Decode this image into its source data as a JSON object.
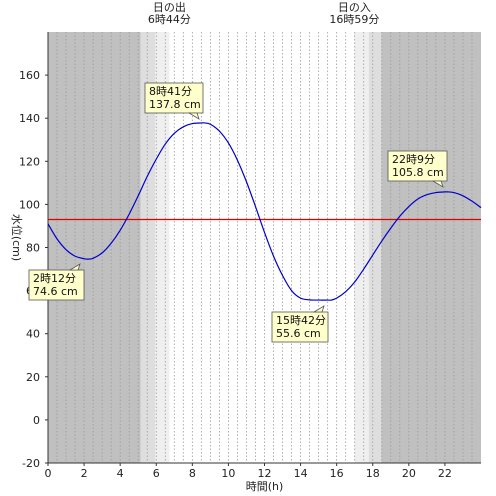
{
  "chart_data": {
    "type": "line",
    "xlabel": "時間(h)",
    "ylabel": "水位(cm)",
    "xlim": [
      0,
      24
    ],
    "ylim": [
      -20,
      180
    ],
    "x_ticks": [
      0,
      2,
      4,
      6,
      8,
      10,
      12,
      14,
      16,
      18,
      20,
      22
    ],
    "y_ticks": [
      -20,
      0,
      20,
      40,
      60,
      80,
      100,
      120,
      140,
      160
    ],
    "grid": "vertical dotted (every 0.5h)",
    "series": [
      {
        "color": "#0000cc",
        "x": [
          0,
          0.5,
          1,
          1.5,
          2,
          2.2,
          2.5,
          3,
          3.5,
          4,
          4.5,
          5,
          5.5,
          6,
          6.5,
          7,
          7.5,
          8,
          8.5,
          8.68,
          9,
          9.5,
          10,
          10.5,
          11,
          11.5,
          12,
          12.5,
          13,
          13.5,
          14,
          14.5,
          15,
          15.5,
          15.7,
          16,
          16.5,
          17,
          17.5,
          18,
          18.5,
          19,
          19.5,
          20,
          20.5,
          21,
          21.5,
          22,
          22.15,
          22.5,
          23,
          23.5,
          24
        ],
        "y": [
          91,
          84,
          79,
          76,
          74.8,
          74.6,
          75,
          77.5,
          82,
          88,
          95.5,
          104,
          113,
          121,
          128,
          133,
          136,
          137.5,
          137.8,
          137.8,
          137.2,
          134,
          128.5,
          120.5,
          110.5,
          99,
          87,
          76,
          67,
          60,
          56.5,
          55.7,
          55.6,
          55.6,
          55.6,
          56.5,
          59.5,
          64,
          70,
          76.5,
          83,
          89,
          94.5,
          99,
          102.5,
          104.5,
          105.5,
          105.8,
          105.8,
          105.5,
          104,
          101.5,
          98.5
        ]
      }
    ],
    "reference_line": {
      "y": 93,
      "color": "#e00000"
    },
    "sun_shading": {
      "night_color": "#c0c0c0",
      "twilight_color": "#dedede",
      "day_color": "#ffffff"
    },
    "sunrise": {
      "x": 6.73,
      "label_line1": "日の出",
      "label_line2": "6時44分"
    },
    "sunset": {
      "x": 16.98,
      "label_line1": "日の入",
      "label_line2": "16時59分"
    },
    "annotations": [
      {
        "x": 8.68,
        "y": 137.8,
        "line1": "8時41分",
        "line2": "137.8 cm"
      },
      {
        "x": 15.7,
        "y": 55.6,
        "line1": "15時42分",
        "line2": "55.6 cm"
      },
      {
        "x": 2.2,
        "y": 74.6,
        "line1": "2時12分",
        "line2": "74.6 cm"
      },
      {
        "x": 22.15,
        "y": 105.8,
        "line1": "22時9分",
        "line2": "105.8 cm"
      }
    ]
  }
}
